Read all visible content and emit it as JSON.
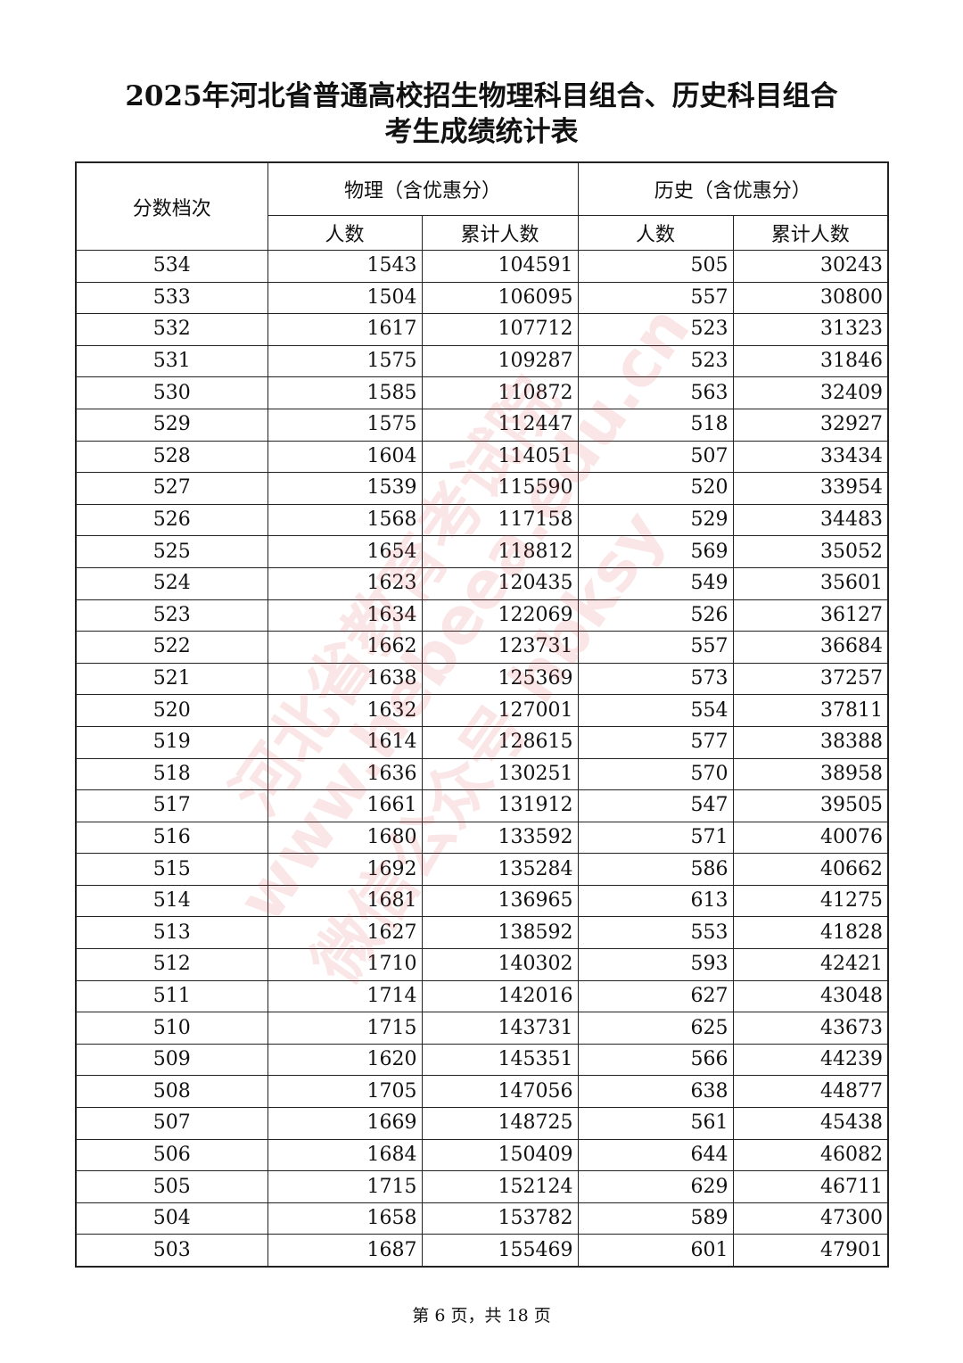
{
  "title_line1": "2025年河北省普通高校招生物理科目组合、历史科目组合",
  "title_line2": "考生成绩统计表",
  "headers": {
    "score": "分数档次",
    "physics": "物理（含优惠分）",
    "history": "历史（含优惠分）",
    "count": "人数",
    "cumulative": "累计人数"
  },
  "rows": [
    [
      "534",
      "1543",
      "104591",
      "505",
      "30243"
    ],
    [
      "533",
      "1504",
      "106095",
      "557",
      "30800"
    ],
    [
      "532",
      "1617",
      "107712",
      "523",
      "31323"
    ],
    [
      "531",
      "1575",
      "109287",
      "523",
      "31846"
    ],
    [
      "530",
      "1585",
      "110872",
      "563",
      "32409"
    ],
    [
      "529",
      "1575",
      "112447",
      "518",
      "32927"
    ],
    [
      "528",
      "1604",
      "114051",
      "507",
      "33434"
    ],
    [
      "527",
      "1539",
      "115590",
      "520",
      "33954"
    ],
    [
      "526",
      "1568",
      "117158",
      "529",
      "34483"
    ],
    [
      "525",
      "1654",
      "118812",
      "569",
      "35052"
    ],
    [
      "524",
      "1623",
      "120435",
      "549",
      "35601"
    ],
    [
      "523",
      "1634",
      "122069",
      "526",
      "36127"
    ],
    [
      "522",
      "1662",
      "123731",
      "557",
      "36684"
    ],
    [
      "521",
      "1638",
      "125369",
      "573",
      "37257"
    ],
    [
      "520",
      "1632",
      "127001",
      "554",
      "37811"
    ],
    [
      "519",
      "1614",
      "128615",
      "577",
      "38388"
    ],
    [
      "518",
      "1636",
      "130251",
      "570",
      "38958"
    ],
    [
      "517",
      "1661",
      "131912",
      "547",
      "39505"
    ],
    [
      "516",
      "1680",
      "133592",
      "571",
      "40076"
    ],
    [
      "515",
      "1692",
      "135284",
      "586",
      "40662"
    ],
    [
      "514",
      "1681",
      "136965",
      "613",
      "41275"
    ],
    [
      "513",
      "1627",
      "138592",
      "553",
      "41828"
    ],
    [
      "512",
      "1710",
      "140302",
      "593",
      "42421"
    ],
    [
      "511",
      "1714",
      "142016",
      "627",
      "43048"
    ],
    [
      "510",
      "1715",
      "143731",
      "625",
      "43673"
    ],
    [
      "509",
      "1620",
      "145351",
      "566",
      "44239"
    ],
    [
      "508",
      "1705",
      "147056",
      "638",
      "44877"
    ],
    [
      "507",
      "1669",
      "148725",
      "561",
      "45438"
    ],
    [
      "506",
      "1684",
      "150409",
      "644",
      "46082"
    ],
    [
      "505",
      "1715",
      "152124",
      "629",
      "46711"
    ],
    [
      "504",
      "1658",
      "153782",
      "589",
      "47300"
    ],
    [
      "503",
      "1687",
      "155469",
      "601",
      "47901"
    ]
  ],
  "watermark": [
    "河北省教育考试院",
    "www.hebeea.edu.cn",
    "微信公众号 hbksy"
  ],
  "footer": "第 6 页，共 18 页"
}
